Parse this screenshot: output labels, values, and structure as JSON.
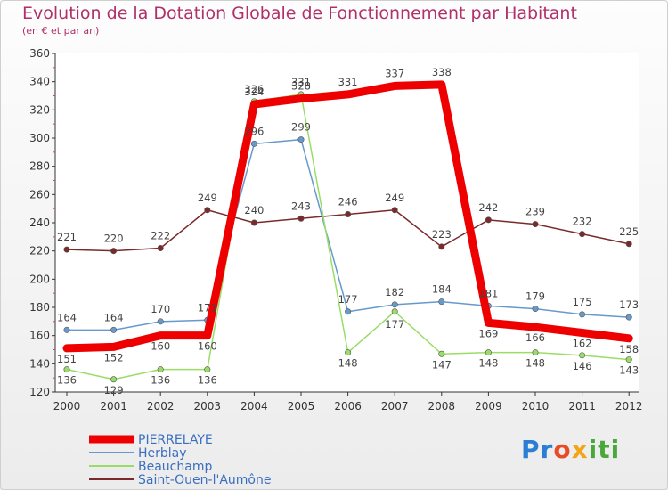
{
  "chart_data": {
    "type": "line",
    "title": "Evolution de la Dotation Globale de Fonctionnement par Habitant",
    "subtitle": "(en € et par an)",
    "x": [
      "2000",
      "2001",
      "2002",
      "2003",
      "2004",
      "2005",
      "2006",
      "2007",
      "2008",
      "2009",
      "2010",
      "2011",
      "2012"
    ],
    "ylim": [
      120,
      360
    ],
    "yticks": [
      120,
      140,
      160,
      180,
      200,
      220,
      240,
      260,
      280,
      300,
      320,
      340,
      360
    ],
    "grid": false,
    "legend_position": "bottom-left",
    "series": [
      {
        "name": "PIERRELAYE",
        "color": "#ee0000",
        "values": [
          151,
          152,
          160,
          160,
          324,
          328,
          331,
          337,
          338,
          169,
          166,
          162,
          158
        ]
      },
      {
        "name": "Herblay",
        "color": "#6699cc",
        "values": [
          164,
          164,
          170,
          171,
          296,
          299,
          177,
          182,
          184,
          181,
          179,
          175,
          173
        ]
      },
      {
        "name": "Beauchamp",
        "color": "#99dd66",
        "values": [
          136,
          129,
          136,
          136,
          326,
          331,
          148,
          177,
          147,
          148,
          148,
          146,
          143
        ]
      },
      {
        "name": "Saint-Ouen-l'Aumône",
        "color": "#7a2a2a",
        "values": [
          221,
          220,
          222,
          249,
          240,
          243,
          246,
          249,
          223,
          242,
          239,
          232,
          225
        ]
      }
    ]
  },
  "point_labels": {
    "PIERRELAYE": [
      "151",
      "152",
      "160",
      "160",
      "324",
      "328",
      "331",
      "337",
      "338",
      "169",
      "166",
      "162",
      "158"
    ],
    "Herblay": [
      "164",
      "164",
      "170",
      "171",
      "296",
      "299",
      "177",
      "182",
      "184",
      "181",
      "179",
      "175",
      "173"
    ],
    "Beauchamp": [
      "136",
      "129",
      "136",
      "136",
      "326",
      "331",
      "148",
      "177",
      "147",
      "148",
      "148",
      "146",
      "143"
    ],
    "Saint-Ouen-l'Aumône": [
      "221",
      "220",
      "222",
      "249",
      "240",
      "243",
      "246",
      "249",
      "223",
      "242",
      "239",
      "232",
      "225"
    ]
  },
  "logo": {
    "p1": "Pr",
    "p2": "o",
    "p3": "x",
    "p4": "iti"
  }
}
